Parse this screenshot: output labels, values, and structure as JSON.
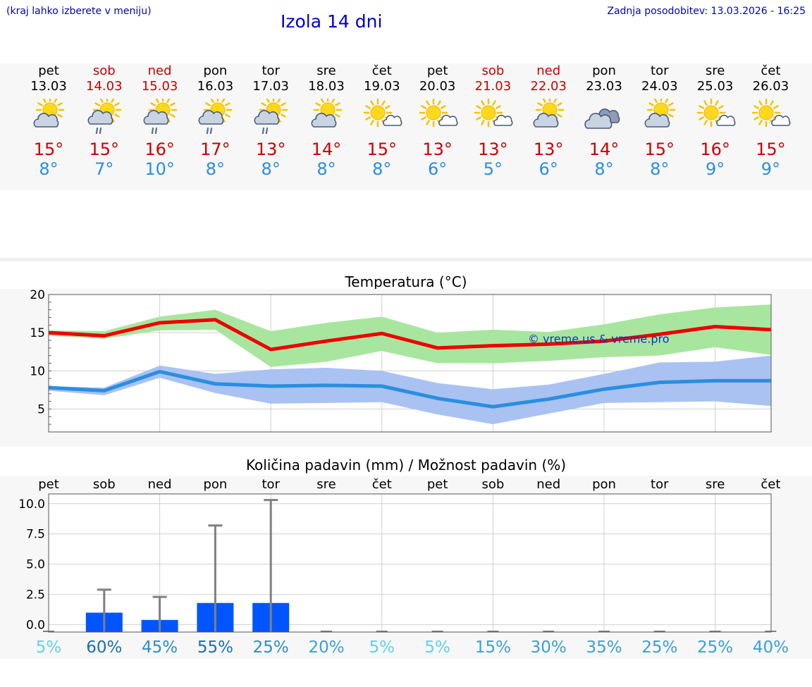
{
  "header": {
    "menu_hint": "(kraj lahko izberete v meniju)",
    "title": "Izola 14 dni",
    "updated": "Zadnja posodobitev: 13.03.2026 - 16:25"
  },
  "colors": {
    "weekend": "#cc0000",
    "max": "#ee0000",
    "min": "#2a8ee0",
    "rain_bar": "#0055ff"
  },
  "days": [
    {
      "name": "pet",
      "date": "13.03",
      "max": "15°",
      "min": "8°",
      "weekend": false,
      "icon": "sun-cloud-icon"
    },
    {
      "name": "sob",
      "date": "14.03",
      "max": "15°",
      "min": "7°",
      "weekend": true,
      "icon": "sun-cloud-rain-icon"
    },
    {
      "name": "ned",
      "date": "15.03",
      "max": "16°",
      "min": "10°",
      "weekend": true,
      "icon": "sun-cloud-rain-icon"
    },
    {
      "name": "pon",
      "date": "16.03",
      "max": "17°",
      "min": "8°",
      "weekend": false,
      "icon": "sun-cloud-rain-icon"
    },
    {
      "name": "tor",
      "date": "17.03",
      "max": "13°",
      "min": "8°",
      "weekend": false,
      "icon": "sun-cloud-rain-icon"
    },
    {
      "name": "sre",
      "date": "18.03",
      "max": "14°",
      "min": "8°",
      "weekend": false,
      "icon": "sun-cloud-icon"
    },
    {
      "name": "čet",
      "date": "19.03",
      "max": "15°",
      "min": "8°",
      "weekend": false,
      "icon": "sun-small-cloud-icon"
    },
    {
      "name": "pet",
      "date": "20.03",
      "max": "13°",
      "min": "6°",
      "weekend": false,
      "icon": "sun-small-cloud-icon"
    },
    {
      "name": "sob",
      "date": "21.03",
      "max": "13°",
      "min": "5°",
      "weekend": true,
      "icon": "sun-small-cloud-icon"
    },
    {
      "name": "ned",
      "date": "22.03",
      "max": "13°",
      "min": "6°",
      "weekend": true,
      "icon": "sun-cloud-icon"
    },
    {
      "name": "pon",
      "date": "23.03",
      "max": "14°",
      "min": "8°",
      "weekend": false,
      "icon": "cloud-icon"
    },
    {
      "name": "tor",
      "date": "24.03",
      "max": "15°",
      "min": "8°",
      "weekend": false,
      "icon": "sun-cloud-icon"
    },
    {
      "name": "sre",
      "date": "25.03",
      "max": "16°",
      "min": "9°",
      "weekend": false,
      "icon": "sun-small-cloud-icon"
    },
    {
      "name": "čet",
      "date": "26.03",
      "max": "15°",
      "min": "9°",
      "weekend": false,
      "icon": "sun-small-cloud-icon"
    }
  ],
  "chart_data": [
    {
      "type": "line",
      "title": "Temperatura (°C)",
      "watermark": "© vreme.us & vreme.pro",
      "ylim": [
        2,
        20
      ],
      "yticks": [
        20,
        15,
        10,
        5
      ],
      "grid": true,
      "x": [
        0,
        1,
        2,
        3,
        4,
        5,
        6,
        7,
        8,
        9,
        10,
        11,
        12,
        13
      ],
      "series": [
        {
          "name": "max",
          "color": "#ee0000",
          "values": [
            15.0,
            14.6,
            16.3,
            16.7,
            12.8,
            13.9,
            14.9,
            13.0,
            13.3,
            13.5,
            13.9,
            14.8,
            15.8,
            15.4
          ]
        },
        {
          "name": "min",
          "color": "#2a8ee0",
          "values": [
            7.8,
            7.4,
            9.9,
            8.3,
            8.0,
            8.1,
            8.0,
            6.4,
            5.3,
            6.3,
            7.6,
            8.5,
            8.7,
            8.7
          ]
        }
      ],
      "bands": [
        {
          "name": "max-range",
          "color": "#a8e6a0",
          "low": [
            14.6,
            14.2,
            15.3,
            15.4,
            10.5,
            11.2,
            12.6,
            11.0,
            11.0,
            11.3,
            11.8,
            12.0,
            13.1,
            12.1
          ],
          "high": [
            15.3,
            15.2,
            17.1,
            18.0,
            15.2,
            16.3,
            17.1,
            15.0,
            15.4,
            15.1,
            16.1,
            17.4,
            18.3,
            18.7
          ]
        },
        {
          "name": "min-range",
          "color": "#a9c2f2",
          "low": [
            7.4,
            6.8,
            9.1,
            7.1,
            5.7,
            5.8,
            5.9,
            4.3,
            3.0,
            4.4,
            5.8,
            5.9,
            6.0,
            5.4
          ],
          "high": [
            8.0,
            7.8,
            10.7,
            9.6,
            10.2,
            10.4,
            10.0,
            8.4,
            7.6,
            8.2,
            9.6,
            11.1,
            11.2,
            12.0
          ]
        }
      ]
    },
    {
      "type": "bar",
      "title": "Količina padavin (mm) / Možnost padavin (%)",
      "ylim": [
        -0.6,
        10.8
      ],
      "yticks": [
        "10.0",
        "7.5",
        "5.0",
        "2.5",
        "0.0"
      ],
      "ytick_values": [
        10.0,
        7.5,
        5.0,
        2.5,
        0.0
      ],
      "grid": true,
      "categories": [
        "pet",
        "sob",
        "ned",
        "pon",
        "tor",
        "sre",
        "čet",
        "pet",
        "sob",
        "ned",
        "pon",
        "tor",
        "sre",
        "čet"
      ],
      "values": [
        0,
        1.0,
        0.4,
        1.8,
        1.8,
        0,
        0,
        0,
        0,
        0,
        0,
        0,
        0,
        0
      ],
      "max_values": [
        0,
        2.9,
        2.3,
        8.2,
        10.3,
        0,
        0,
        0,
        0,
        0,
        0,
        0,
        0,
        0
      ],
      "probability": [
        "5%",
        "60%",
        "45%",
        "55%",
        "25%",
        "20%",
        "5%",
        "5%",
        "15%",
        "30%",
        "35%",
        "25%",
        "25%",
        "40%"
      ],
      "probability_colors": [
        "#5fd3e8",
        "#1a6fb5",
        "#2a8ed0",
        "#1a6fb5",
        "#2a8ed0",
        "#3aa0d8",
        "#5fd3e8",
        "#5fd3e8",
        "#3aa0d8",
        "#3aa0d8",
        "#3aa0d8",
        "#3aa0d8",
        "#3aa0d8",
        "#3aa0d8"
      ]
    }
  ]
}
